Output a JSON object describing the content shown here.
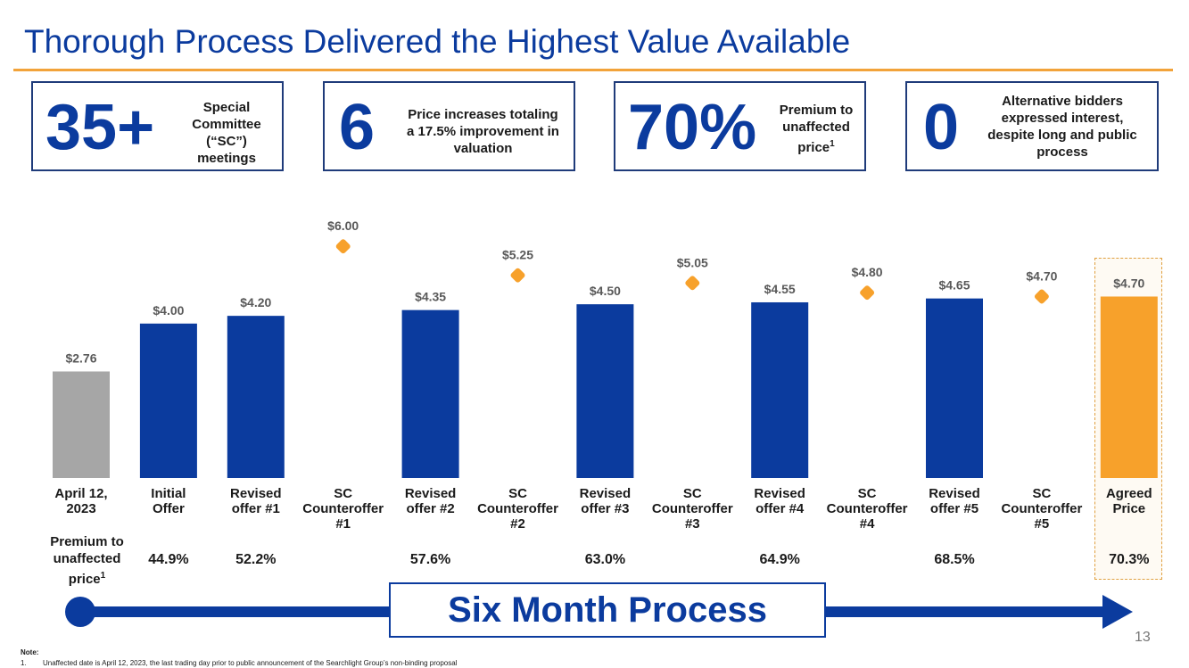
{
  "title": "Thorough Process Delivered the Highest Value Available",
  "stats": [
    {
      "big": "35+",
      "text_lines": [
        "Special",
        "Committee",
        "(“SC”)",
        "meetings"
      ]
    },
    {
      "big": "6",
      "text_lines": [
        "Price increases totaling",
        "a 17.5% improvement in",
        "valuation"
      ]
    },
    {
      "big": "70%",
      "text_lines": [
        "Premium to",
        "unaffected",
        "price"
      ],
      "sup": "1"
    },
    {
      "big": "0",
      "text_lines": [
        "Alternative bidders",
        "expressed interest,",
        "despite long and public",
        "process"
      ]
    }
  ],
  "premium_label": {
    "lines": [
      "Premium to",
      "unaffected",
      "price"
    ],
    "sup": "1"
  },
  "process_label": "Six Month Process",
  "page_number": "13",
  "note": {
    "title": "Note:",
    "number": "1.",
    "text": "Unaffected date is April 12, 2023, the last trading day prior to public announcement of the Searchlight Group’s non-binding proposal"
  },
  "colors": {
    "blue": "#0b3b9e",
    "orange": "#f7a12b",
    "gray": "#a6a6a6",
    "rule": "#f2a33a"
  },
  "chart_data": {
    "type": "bar",
    "title": "",
    "xlabel": "",
    "ylabel": "",
    "ylim": [
      0,
      6.5
    ],
    "categories": [
      [
        "April 12,",
        "2023"
      ],
      [
        "Initial",
        "Offer"
      ],
      [
        "Revised",
        "offer #1"
      ],
      [
        "SC",
        "Counteroffer",
        "#1"
      ],
      [
        "Revised",
        "offer #2"
      ],
      [
        "SC",
        "Counteroffer",
        "#2"
      ],
      [
        "Revised",
        "offer #3"
      ],
      [
        "SC",
        "Counteroffer",
        "#3"
      ],
      [
        "Revised",
        "offer #4"
      ],
      [
        "SC",
        "Counteroffer",
        "#4"
      ],
      [
        "Revised",
        "offer #5"
      ],
      [
        "SC",
        "Counteroffer",
        "#5"
      ],
      [
        "Agreed",
        "Price"
      ]
    ],
    "series": [
      {
        "name": "Unaffected price",
        "kind": "bar",
        "color": "#a6a6a6",
        "values": [
          2.76,
          null,
          null,
          null,
          null,
          null,
          null,
          null,
          null,
          null,
          null,
          null,
          null
        ],
        "labels": [
          "$2.76",
          null,
          null,
          null,
          null,
          null,
          null,
          null,
          null,
          null,
          null,
          null,
          null
        ]
      },
      {
        "name": "Offers",
        "kind": "bar",
        "color": "#0b3b9e",
        "values": [
          null,
          4.0,
          4.2,
          null,
          4.35,
          null,
          4.5,
          null,
          4.55,
          null,
          4.65,
          null,
          null
        ],
        "labels": [
          null,
          "$4.00",
          "$4.20",
          null,
          "$4.35",
          null,
          "$4.50",
          null,
          "$4.55",
          null,
          "$4.65",
          null,
          null
        ]
      },
      {
        "name": "SC Counteroffers",
        "kind": "marker",
        "color": "#f7a12b",
        "values": [
          null,
          null,
          null,
          6.0,
          null,
          5.25,
          null,
          5.05,
          null,
          4.8,
          null,
          4.7,
          null
        ],
        "labels": [
          null,
          null,
          null,
          "$6.00",
          null,
          "$5.25",
          null,
          "$5.05",
          null,
          "$4.80",
          null,
          "$4.70",
          null
        ]
      },
      {
        "name": "Agreed Price",
        "kind": "bar",
        "color": "#f7a12b",
        "values": [
          null,
          null,
          null,
          null,
          null,
          null,
          null,
          null,
          null,
          null,
          null,
          null,
          4.7
        ],
        "labels": [
          null,
          null,
          null,
          null,
          null,
          null,
          null,
          null,
          null,
          null,
          null,
          null,
          "$4.70"
        ]
      }
    ],
    "premium": [
      "",
      "44.9%",
      "52.2%",
      "",
      "57.6%",
      "",
      "63.0%",
      "",
      "64.9%",
      "",
      "68.5%",
      "",
      "70.3%"
    ]
  }
}
